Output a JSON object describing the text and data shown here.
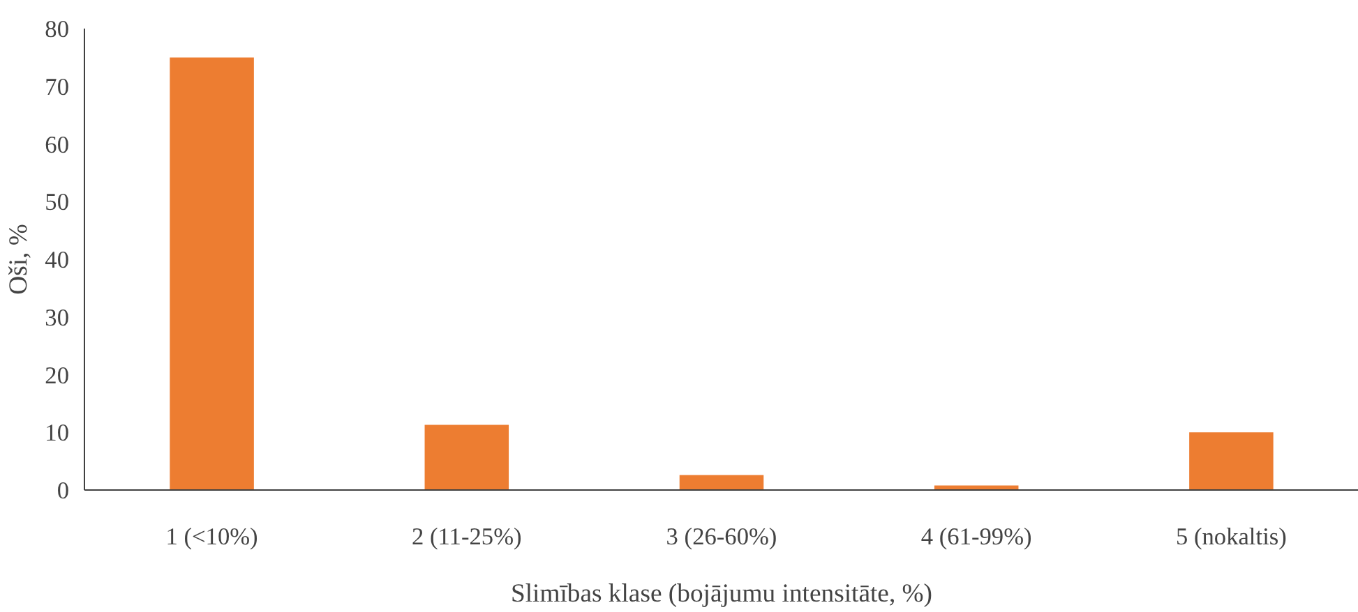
{
  "chart_data": {
    "type": "bar",
    "xlabel": "Slimības klase (bojājumu intensitāte, %)",
    "ylabel": "Oši, %",
    "categories": [
      "1 (<10%)",
      "2 (11-25%)",
      "3 (26-60%)",
      "4 (61-99%)",
      "5 (nokaltis)"
    ],
    "values": [
      75,
      11.3,
      2.6,
      0.8,
      10
    ],
    "color": "#ed7d31",
    "ylim": [
      0,
      80
    ],
    "yticks": [
      0,
      10,
      20,
      30,
      40,
      50,
      60,
      70,
      80
    ],
    "grid": false
  }
}
